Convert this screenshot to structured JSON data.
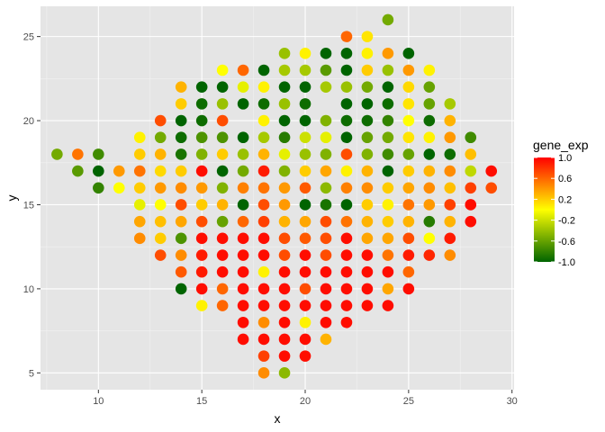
{
  "chart_data": {
    "type": "scatter",
    "xlabel": "x",
    "ylabel": "y",
    "xlim": [
      7.2,
      30.1
    ],
    "ylim": [
      4.0,
      26.8
    ],
    "x_ticks": [
      10,
      15,
      20,
      25,
      30
    ],
    "y_ticks": [
      5,
      10,
      15,
      20,
      25
    ],
    "grid": true,
    "background": "#e5e5e5",
    "legend": {
      "title": "gene_exp",
      "placement": "right",
      "ticks": [
        1.0,
        0.6,
        0.2,
        -0.2,
        -0.6,
        -1.0
      ],
      "tick_labels": [
        "1.0",
        "0.6",
        "0.2",
        "-0.2",
        "-0.6",
        "-1.0"
      ],
      "color_low": "#006400",
      "color_mid": "#ffff00",
      "color_high": "#ff0000",
      "range": [
        -1.0,
        1.0
      ]
    },
    "points": [
      {
        "x": 8,
        "y": 18,
        "value": -0.55
      },
      {
        "x": 9,
        "y": 18,
        "value": 0.55
      },
      {
        "x": 10,
        "y": 18,
        "value": -0.75
      },
      {
        "x": 9,
        "y": 17,
        "value": -0.65
      },
      {
        "x": 10,
        "y": 17,
        "value": -1.0
      },
      {
        "x": 10,
        "y": 16,
        "value": -0.8
      },
      {
        "x": 11,
        "y": 17,
        "value": 0.4
      },
      {
        "x": 11,
        "y": 16,
        "value": 0.0
      },
      {
        "x": 12,
        "y": 19,
        "value": 0.05
      },
      {
        "x": 12,
        "y": 18,
        "value": 0.2
      },
      {
        "x": 12,
        "y": 17,
        "value": 0.55
      },
      {
        "x": 12,
        "y": 16,
        "value": 0.2
      },
      {
        "x": 12,
        "y": 15,
        "value": -0.1
      },
      {
        "x": 12,
        "y": 14,
        "value": 0.35
      },
      {
        "x": 12,
        "y": 13,
        "value": 0.45
      },
      {
        "x": 13,
        "y": 20,
        "value": 0.7
      },
      {
        "x": 13,
        "y": 19,
        "value": -0.55
      },
      {
        "x": 13,
        "y": 18,
        "value": 0.3
      },
      {
        "x": 13,
        "y": 17,
        "value": 0.15
      },
      {
        "x": 13,
        "y": 16,
        "value": 0.4
      },
      {
        "x": 13,
        "y": 15,
        "value": 0.0
      },
      {
        "x": 13,
        "y": 14,
        "value": 0.25
      },
      {
        "x": 13,
        "y": 13,
        "value": 0.2
      },
      {
        "x": 13,
        "y": 12,
        "value": 0.7
      },
      {
        "x": 14,
        "y": 22,
        "value": 0.3
      },
      {
        "x": 14,
        "y": 21,
        "value": 0.2
      },
      {
        "x": 14,
        "y": 20,
        "value": -1.0
      },
      {
        "x": 14,
        "y": 19,
        "value": -0.95
      },
      {
        "x": 14,
        "y": 18,
        "value": -0.9
      },
      {
        "x": 14,
        "y": 17,
        "value": 0.2
      },
      {
        "x": 14,
        "y": 16,
        "value": 0.45
      },
      {
        "x": 14,
        "y": 15,
        "value": 0.7
      },
      {
        "x": 14,
        "y": 14,
        "value": 0.35
      },
      {
        "x": 14,
        "y": 13,
        "value": -0.7
      },
      {
        "x": 14,
        "y": 12,
        "value": 0.45
      },
      {
        "x": 14,
        "y": 11,
        "value": 0.65
      },
      {
        "x": 14,
        "y": 10,
        "value": -1.0
      },
      {
        "x": 15,
        "y": 22,
        "value": -1.0
      },
      {
        "x": 15,
        "y": 21,
        "value": -0.95
      },
      {
        "x": 15,
        "y": 20,
        "value": -0.95
      },
      {
        "x": 15,
        "y": 19,
        "value": -0.7
      },
      {
        "x": 15,
        "y": 18,
        "value": -0.5
      },
      {
        "x": 15,
        "y": 17,
        "value": 0.95
      },
      {
        "x": 15,
        "y": 16,
        "value": 0.4
      },
      {
        "x": 15,
        "y": 15,
        "value": 0.2
      },
      {
        "x": 15,
        "y": 14,
        "value": 0.7
      },
      {
        "x": 15,
        "y": 13,
        "value": 0.95
      },
      {
        "x": 15,
        "y": 12,
        "value": 0.9
      },
      {
        "x": 15,
        "y": 11,
        "value": 0.9
      },
      {
        "x": 15,
        "y": 10,
        "value": 0.95
      },
      {
        "x": 15,
        "y": 9,
        "value": 0.05
      },
      {
        "x": 16,
        "y": 23,
        "value": 0.0
      },
      {
        "x": 16,
        "y": 22,
        "value": -1.0
      },
      {
        "x": 16,
        "y": 21,
        "value": -0.4
      },
      {
        "x": 16,
        "y": 20,
        "value": 0.7
      },
      {
        "x": 16,
        "y": 19,
        "value": -0.7
      },
      {
        "x": 16,
        "y": 18,
        "value": 0.2
      },
      {
        "x": 16,
        "y": 17,
        "value": -1.0
      },
      {
        "x": 16,
        "y": 16,
        "value": -0.5
      },
      {
        "x": 16,
        "y": 15,
        "value": 0.3
      },
      {
        "x": 16,
        "y": 14,
        "value": -0.6
      },
      {
        "x": 16,
        "y": 13,
        "value": 0.95
      },
      {
        "x": 16,
        "y": 12,
        "value": 0.95
      },
      {
        "x": 16,
        "y": 11,
        "value": 0.95
      },
      {
        "x": 16,
        "y": 10,
        "value": 0.6
      },
      {
        "x": 16,
        "y": 9,
        "value": 0.6
      },
      {
        "x": 17,
        "y": 23,
        "value": 0.6
      },
      {
        "x": 17,
        "y": 22,
        "value": -0.1
      },
      {
        "x": 17,
        "y": 21,
        "value": -1.0
      },
      {
        "x": 17,
        "y": 19,
        "value": -1.0
      },
      {
        "x": 17,
        "y": 18,
        "value": -0.4
      },
      {
        "x": 17,
        "y": 17,
        "value": -0.55
      },
      {
        "x": 17,
        "y": 16,
        "value": 0.5
      },
      {
        "x": 17,
        "y": 15,
        "value": -1.0
      },
      {
        "x": 17,
        "y": 14,
        "value": 0.6
      },
      {
        "x": 17,
        "y": 13,
        "value": 0.95
      },
      {
        "x": 17,
        "y": 12,
        "value": 0.95
      },
      {
        "x": 17,
        "y": 11,
        "value": 0.95
      },
      {
        "x": 17,
        "y": 10,
        "value": 0.95
      },
      {
        "x": 17,
        "y": 9,
        "value": 0.95
      },
      {
        "x": 17,
        "y": 8,
        "value": 0.95
      },
      {
        "x": 17,
        "y": 7,
        "value": 0.95
      },
      {
        "x": 18,
        "y": 23,
        "value": -1.0
      },
      {
        "x": 18,
        "y": 22,
        "value": 0.05
      },
      {
        "x": 18,
        "y": 21,
        "value": -0.95
      },
      {
        "x": 18,
        "y": 20,
        "value": 0.05
      },
      {
        "x": 18,
        "y": 19,
        "value": -0.35
      },
      {
        "x": 18,
        "y": 18,
        "value": 0.3
      },
      {
        "x": 18,
        "y": 17,
        "value": 0.9
      },
      {
        "x": 18,
        "y": 16,
        "value": 0.55
      },
      {
        "x": 18,
        "y": 15,
        "value": 0.7
      },
      {
        "x": 18,
        "y": 14,
        "value": 0.75
      },
      {
        "x": 18,
        "y": 13,
        "value": 0.95
      },
      {
        "x": 18,
        "y": 12,
        "value": 0.95
      },
      {
        "x": 18,
        "y": 11,
        "value": 0.05
      },
      {
        "x": 18,
        "y": 10,
        "value": 0.95
      },
      {
        "x": 18,
        "y": 9,
        "value": 0.95
      },
      {
        "x": 18,
        "y": 8,
        "value": 0.45
      },
      {
        "x": 18,
        "y": 7,
        "value": 0.95
      },
      {
        "x": 18,
        "y": 6,
        "value": 0.75
      },
      {
        "x": 18,
        "y": 5,
        "value": 0.45
      },
      {
        "x": 19,
        "y": 24,
        "value": -0.4
      },
      {
        "x": 19,
        "y": 23,
        "value": -0.35
      },
      {
        "x": 19,
        "y": 22,
        "value": -1.0
      },
      {
        "x": 19,
        "y": 21,
        "value": -0.4
      },
      {
        "x": 19,
        "y": 20,
        "value": -1.0
      },
      {
        "x": 19,
        "y": 19,
        "value": -0.85
      },
      {
        "x": 19,
        "y": 18,
        "value": -0.1
      },
      {
        "x": 19,
        "y": 17,
        "value": -0.5
      },
      {
        "x": 19,
        "y": 16,
        "value": 0.4
      },
      {
        "x": 19,
        "y": 15,
        "value": 0.4
      },
      {
        "x": 19,
        "y": 14,
        "value": 0.3
      },
      {
        "x": 19,
        "y": 13,
        "value": 0.7
      },
      {
        "x": 19,
        "y": 12,
        "value": 0.7
      },
      {
        "x": 19,
        "y": 11,
        "value": 0.95
      },
      {
        "x": 19,
        "y": 10,
        "value": 0.95
      },
      {
        "x": 19,
        "y": 9,
        "value": 0.95
      },
      {
        "x": 19,
        "y": 8,
        "value": 0.95
      },
      {
        "x": 19,
        "y": 7,
        "value": 0.95
      },
      {
        "x": 19,
        "y": 6,
        "value": 0.95
      },
      {
        "x": 19,
        "y": 5,
        "value": -0.45
      },
      {
        "x": 20,
        "y": 24,
        "value": 0.05
      },
      {
        "x": 20,
        "y": 23,
        "value": -0.35
      },
      {
        "x": 20,
        "y": 22,
        "value": -1.0
      },
      {
        "x": 20,
        "y": 21,
        "value": -0.95
      },
      {
        "x": 20,
        "y": 20,
        "value": -1.0
      },
      {
        "x": 20,
        "y": 19,
        "value": -0.2
      },
      {
        "x": 20,
        "y": 18,
        "value": -0.4
      },
      {
        "x": 20,
        "y": 17,
        "value": 0.2
      },
      {
        "x": 20,
        "y": 16,
        "value": 0.65
      },
      {
        "x": 20,
        "y": 15,
        "value": -1.0
      },
      {
        "x": 20,
        "y": 14,
        "value": 0.35
      },
      {
        "x": 20,
        "y": 13,
        "value": 0.65
      },
      {
        "x": 20,
        "y": 12,
        "value": 0.95
      },
      {
        "x": 20,
        "y": 11,
        "value": 0.95
      },
      {
        "x": 20,
        "y": 10,
        "value": 0.7
      },
      {
        "x": 20,
        "y": 9,
        "value": 0.95
      },
      {
        "x": 20,
        "y": 8,
        "value": 0.05
      },
      {
        "x": 20,
        "y": 7,
        "value": 0.95
      },
      {
        "x": 20,
        "y": 6,
        "value": 0.95
      },
      {
        "x": 21,
        "y": 24,
        "value": -1.0
      },
      {
        "x": 21,
        "y": 23,
        "value": -0.65
      },
      {
        "x": 21,
        "y": 22,
        "value": -0.35
      },
      {
        "x": 21,
        "y": 20,
        "value": -0.5
      },
      {
        "x": 21,
        "y": 19,
        "value": -0.1
      },
      {
        "x": 21,
        "y": 18,
        "value": -0.5
      },
      {
        "x": 21,
        "y": 17,
        "value": 0.35
      },
      {
        "x": 21,
        "y": 16,
        "value": -0.45
      },
      {
        "x": 21,
        "y": 15,
        "value": -0.9
      },
      {
        "x": 21,
        "y": 14,
        "value": 0.7
      },
      {
        "x": 21,
        "y": 13,
        "value": 0.7
      },
      {
        "x": 21,
        "y": 12,
        "value": 0.7
      },
      {
        "x": 21,
        "y": 11,
        "value": 0.95
      },
      {
        "x": 21,
        "y": 10,
        "value": 0.95
      },
      {
        "x": 21,
        "y": 9,
        "value": 0.95
      },
      {
        "x": 21,
        "y": 8,
        "value": 0.95
      },
      {
        "x": 21,
        "y": 7,
        "value": 0.3
      },
      {
        "x": 22,
        "y": 25,
        "value": 0.6
      },
      {
        "x": 22,
        "y": 24,
        "value": -1.0
      },
      {
        "x": 22,
        "y": 23,
        "value": -1.0
      },
      {
        "x": 22,
        "y": 22,
        "value": -0.4
      },
      {
        "x": 22,
        "y": 21,
        "value": -1.0
      },
      {
        "x": 22,
        "y": 20,
        "value": -0.95
      },
      {
        "x": 22,
        "y": 19,
        "value": -1.0
      },
      {
        "x": 22,
        "y": 18,
        "value": 0.7
      },
      {
        "x": 22,
        "y": 17,
        "value": 0.05
      },
      {
        "x": 22,
        "y": 16,
        "value": 0.5
      },
      {
        "x": 22,
        "y": 15,
        "value": -1.0
      },
      {
        "x": 22,
        "y": 14,
        "value": 0.55
      },
      {
        "x": 22,
        "y": 13,
        "value": 0.95
      },
      {
        "x": 22,
        "y": 12,
        "value": 0.95
      },
      {
        "x": 22,
        "y": 11,
        "value": 0.95
      },
      {
        "x": 22,
        "y": 10,
        "value": 0.95
      },
      {
        "x": 22,
        "y": 9,
        "value": 0.95
      },
      {
        "x": 22,
        "y": 8,
        "value": 0.95
      },
      {
        "x": 23,
        "y": 25,
        "value": 0.1
      },
      {
        "x": 23,
        "y": 24,
        "value": 0.05
      },
      {
        "x": 23,
        "y": 23,
        "value": 0.2
      },
      {
        "x": 23,
        "y": 22,
        "value": -0.55
      },
      {
        "x": 23,
        "y": 21,
        "value": -1.0
      },
      {
        "x": 23,
        "y": 20,
        "value": -0.95
      },
      {
        "x": 23,
        "y": 19,
        "value": -0.6
      },
      {
        "x": 23,
        "y": 18,
        "value": -0.5
      },
      {
        "x": 23,
        "y": 17,
        "value": 0.3
      },
      {
        "x": 23,
        "y": 16,
        "value": 0.45
      },
      {
        "x": 23,
        "y": 15,
        "value": 0.2
      },
      {
        "x": 23,
        "y": 14,
        "value": 0.3
      },
      {
        "x": 23,
        "y": 13,
        "value": 0.35
      },
      {
        "x": 23,
        "y": 12,
        "value": 0.95
      },
      {
        "x": 23,
        "y": 11,
        "value": 0.95
      },
      {
        "x": 23,
        "y": 10,
        "value": 0.95
      },
      {
        "x": 23,
        "y": 9,
        "value": 0.95
      },
      {
        "x": 24,
        "y": 26,
        "value": -0.55
      },
      {
        "x": 24,
        "y": 24,
        "value": 0.4
      },
      {
        "x": 24,
        "y": 23,
        "value": -0.4
      },
      {
        "x": 24,
        "y": 22,
        "value": -1.0
      },
      {
        "x": 24,
        "y": 21,
        "value": -0.95
      },
      {
        "x": 24,
        "y": 20,
        "value": -0.8
      },
      {
        "x": 24,
        "y": 19,
        "value": -0.55
      },
      {
        "x": 24,
        "y": 18,
        "value": -0.75
      },
      {
        "x": 24,
        "y": 17,
        "value": -1.0
      },
      {
        "x": 24,
        "y": 16,
        "value": 0.2
      },
      {
        "x": 24,
        "y": 15,
        "value": 0.05
      },
      {
        "x": 24,
        "y": 14,
        "value": 0.2
      },
      {
        "x": 24,
        "y": 13,
        "value": 0.35
      },
      {
        "x": 24,
        "y": 12,
        "value": 0.55
      },
      {
        "x": 24,
        "y": 11,
        "value": 0.95
      },
      {
        "x": 24,
        "y": 10,
        "value": 0.35
      },
      {
        "x": 24,
        "y": 9,
        "value": 0.95
      },
      {
        "x": 25,
        "y": 24,
        "value": -1.0
      },
      {
        "x": 25,
        "y": 23,
        "value": 0.4
      },
      {
        "x": 25,
        "y": 22,
        "value": 0.15
      },
      {
        "x": 25,
        "y": 21,
        "value": 0.1
      },
      {
        "x": 25,
        "y": 20,
        "value": 0.0
      },
      {
        "x": 25,
        "y": 19,
        "value": 0.1
      },
      {
        "x": 25,
        "y": 18,
        "value": -0.6
      },
      {
        "x": 25,
        "y": 17,
        "value": 0.2
      },
      {
        "x": 25,
        "y": 16,
        "value": 0.35
      },
      {
        "x": 25,
        "y": 15,
        "value": 0.55
      },
      {
        "x": 25,
        "y": 14,
        "value": 0.3
      },
      {
        "x": 25,
        "y": 13,
        "value": 0.7
      },
      {
        "x": 25,
        "y": 12,
        "value": 0.9
      },
      {
        "x": 25,
        "y": 11,
        "value": 0.6
      },
      {
        "x": 25,
        "y": 10,
        "value": 0.95
      },
      {
        "x": 26,
        "y": 23,
        "value": 0.05
      },
      {
        "x": 26,
        "y": 22,
        "value": -0.6
      },
      {
        "x": 26,
        "y": 21,
        "value": -0.6
      },
      {
        "x": 26,
        "y": 20,
        "value": -0.95
      },
      {
        "x": 26,
        "y": 19,
        "value": 0.05
      },
      {
        "x": 26,
        "y": 18,
        "value": -1.0
      },
      {
        "x": 26,
        "y": 17,
        "value": 0.3
      },
      {
        "x": 26,
        "y": 16,
        "value": 0.45
      },
      {
        "x": 26,
        "y": 15,
        "value": 0.4
      },
      {
        "x": 26,
        "y": 14,
        "value": -0.85
      },
      {
        "x": 26,
        "y": 13,
        "value": 0.0
      },
      {
        "x": 26,
        "y": 12,
        "value": 0.85
      },
      {
        "x": 27,
        "y": 21,
        "value": -0.35
      },
      {
        "x": 27,
        "y": 20,
        "value": 0.3
      },
      {
        "x": 27,
        "y": 19,
        "value": 0.4
      },
      {
        "x": 27,
        "y": 18,
        "value": -0.95
      },
      {
        "x": 27,
        "y": 17,
        "value": 0.45
      },
      {
        "x": 27,
        "y": 16,
        "value": 0.25
      },
      {
        "x": 27,
        "y": 15,
        "value": 0.75
      },
      {
        "x": 27,
        "y": 14,
        "value": 0.3
      },
      {
        "x": 27,
        "y": 13,
        "value": 0.9
      },
      {
        "x": 27,
        "y": 12,
        "value": 0.45
      },
      {
        "x": 28,
        "y": 19,
        "value": -0.75
      },
      {
        "x": 28,
        "y": 18,
        "value": 0.25
      },
      {
        "x": 28,
        "y": 17,
        "value": -0.25
      },
      {
        "x": 28,
        "y": 16,
        "value": 0.75
      },
      {
        "x": 28,
        "y": 15,
        "value": 0.95
      },
      {
        "x": 28,
        "y": 14,
        "value": 0.95
      },
      {
        "x": 29,
        "y": 17,
        "value": 0.95
      },
      {
        "x": 29,
        "y": 16,
        "value": 0.7
      }
    ]
  }
}
